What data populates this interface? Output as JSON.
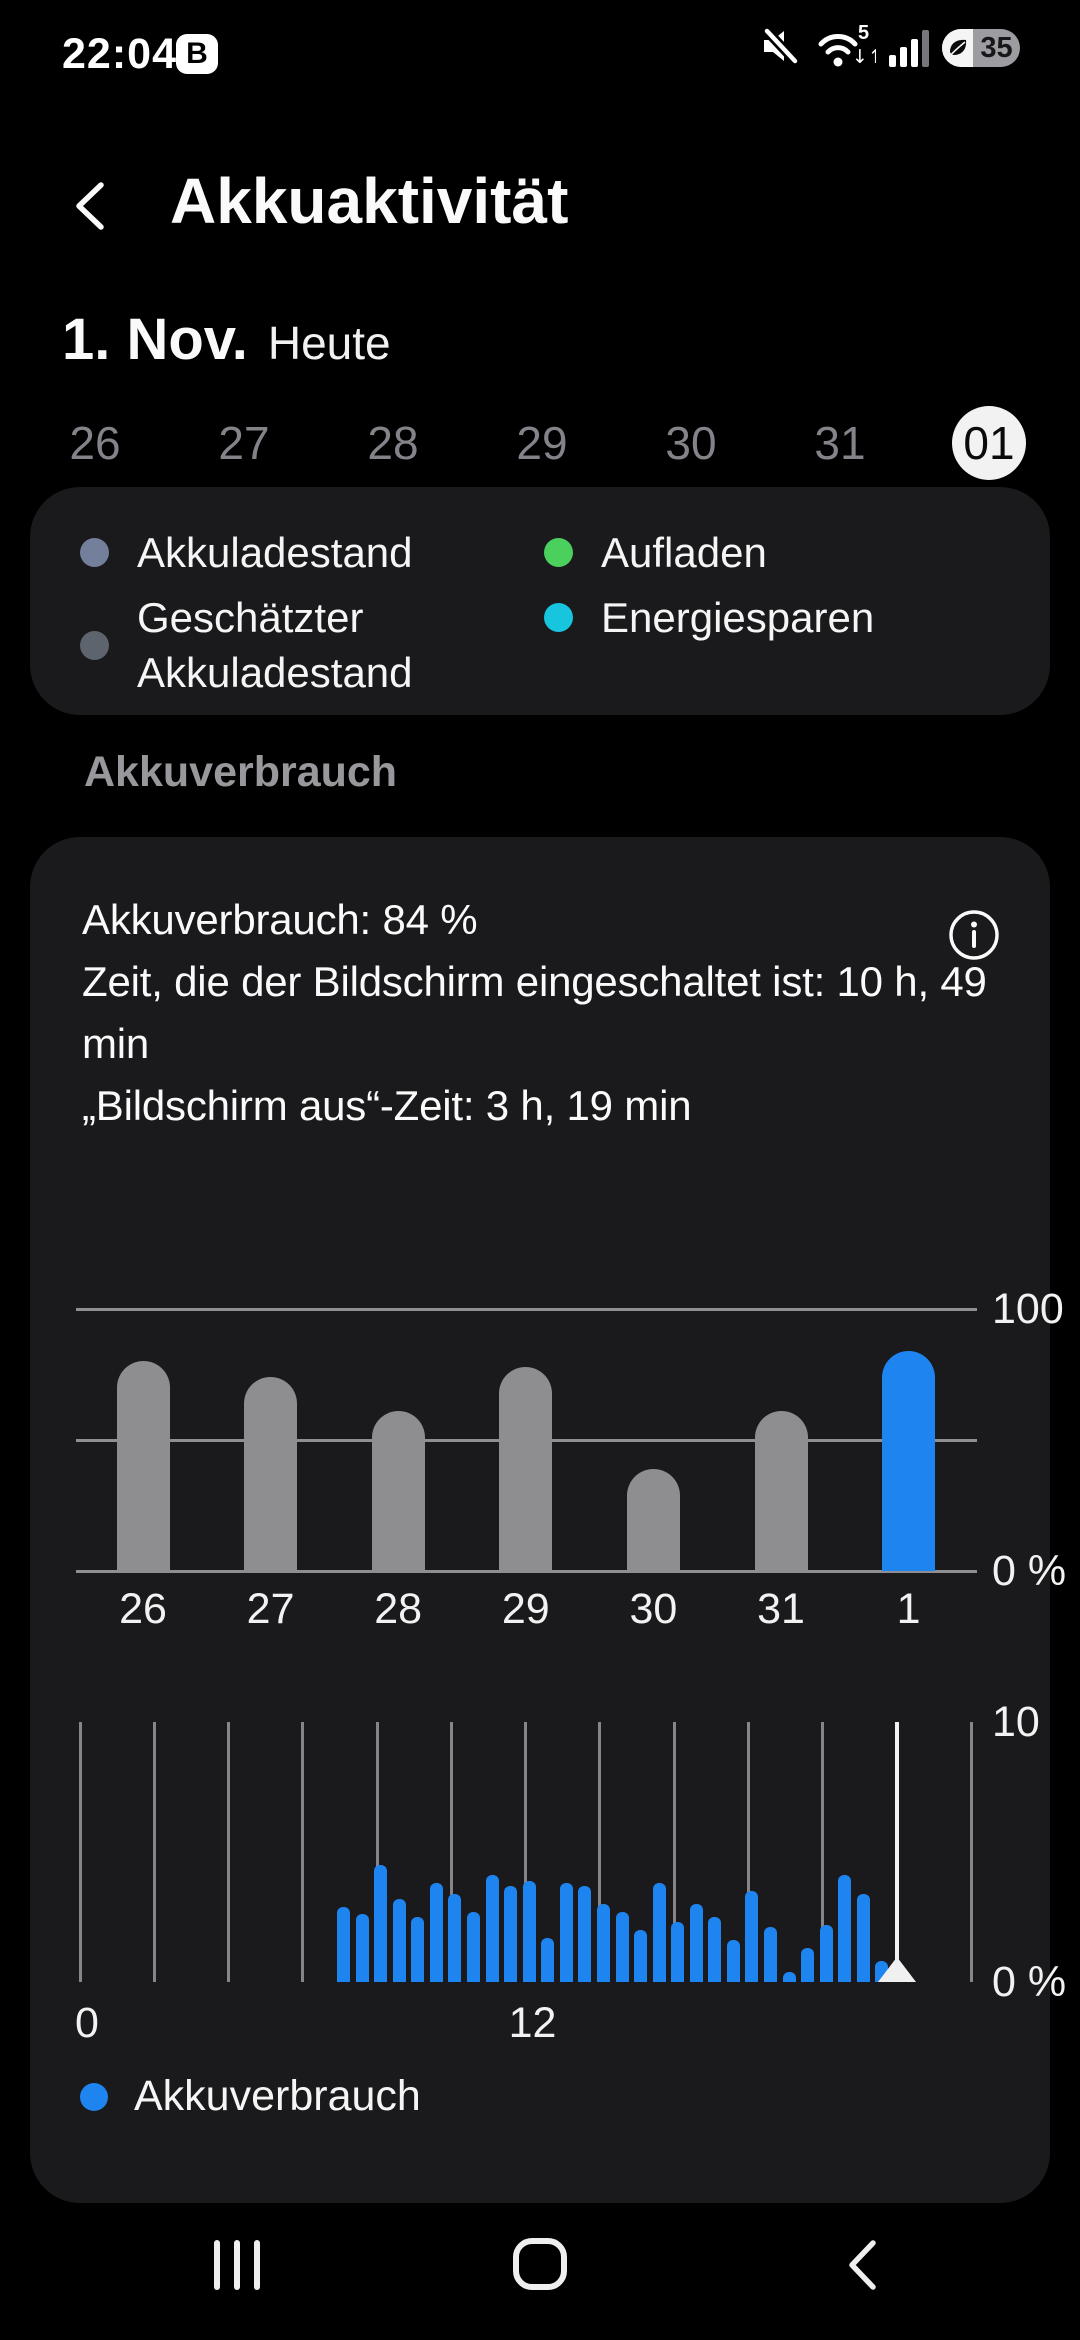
{
  "status_bar": {
    "time": "22:04",
    "app_badge": "B",
    "battery_level": "35"
  },
  "header": {
    "title": "Akkuaktivität"
  },
  "date_heading": {
    "date": "1. Nov.",
    "qualifier": "Heute"
  },
  "date_selector": {
    "days": [
      "26",
      "27",
      "28",
      "29",
      "30",
      "31",
      "01"
    ],
    "selected_index": 6
  },
  "chart_legend_top": {
    "items": [
      {
        "label": "Akkuladestand",
        "color": "#74809B"
      },
      {
        "label": "Geschätzter Akkuladestand",
        "color": "#5E646E"
      },
      {
        "label": "Aufladen",
        "color": "#4BD05E"
      },
      {
        "label": "Energiesparen",
        "color": "#17C5DE"
      }
    ]
  },
  "section_title": "Akkuverbrauch",
  "usage_summary": {
    "battery_usage": "Akkuverbrauch: 84 %",
    "screen_on": "Zeit, die der Bildschirm eingeschaltet ist: 10 h, 49 min",
    "screen_off": "„Bildschirm aus“-Zeit: 3 h, 19 min"
  },
  "chart_data": [
    {
      "type": "bar",
      "title": "",
      "categories": [
        "26",
        "27",
        "28",
        "29",
        "30",
        "31",
        "1"
      ],
      "values": [
        80,
        74,
        61,
        78,
        39,
        61,
        84
      ],
      "unit": "%",
      "ylim": [
        0,
        100
      ],
      "yticks": [
        {
          "value": 100,
          "label": "100"
        },
        {
          "value": 0,
          "label": "0 %"
        }
      ],
      "gridlines": [
        100,
        50,
        0
      ],
      "bar_color_default": "#8E8E90",
      "bar_color_highlight": "#1E84F0",
      "highlight_index": 6
    },
    {
      "type": "bar",
      "x_unit": "hours",
      "x_range": [
        0,
        24
      ],
      "gridline_step_hours": 2,
      "bar_start_hour": 7.0,
      "bar_step_hours": 0.5,
      "values": [
        2.9,
        2.6,
        4.5,
        3.2,
        2.5,
        3.8,
        3.4,
        2.7,
        4.1,
        3.7,
        3.9,
        1.7,
        3.8,
        3.7,
        3.0,
        2.7,
        2.0,
        3.8,
        2.3,
        3.0,
        2.5,
        1.6,
        3.5,
        2.1,
        0.4,
        1.3,
        2.2,
        4.1,
        3.4,
        0.8
      ],
      "unit": "%",
      "ylim": [
        0,
        10
      ],
      "yticks": [
        {
          "value": 10,
          "label": "10"
        },
        {
          "value": 0,
          "label": "0 %"
        }
      ],
      "xticks": [
        {
          "hour": 0,
          "label": "0"
        },
        {
          "hour": 12,
          "label": "12"
        }
      ],
      "current_time_hour": 22,
      "bar_color": "#1E84F0"
    }
  ],
  "chart_legend_bottom": {
    "label": "Akkuverbrauch",
    "color": "#1E84F0"
  }
}
